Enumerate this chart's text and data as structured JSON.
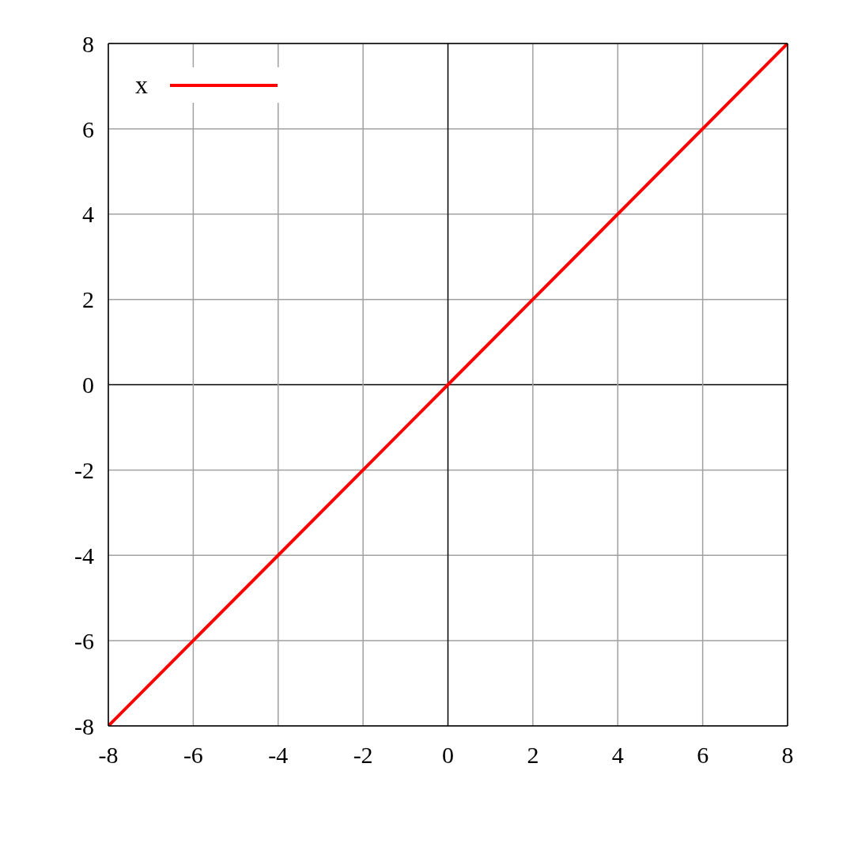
{
  "chart_data": {
    "type": "line",
    "x": [
      -8,
      -6,
      -4,
      -2,
      0,
      2,
      4,
      6,
      8
    ],
    "series": [
      {
        "name": "x",
        "color": "#ff0000",
        "values": [
          -8,
          -6,
          -4,
          -2,
          0,
          2,
          4,
          6,
          8
        ]
      }
    ],
    "xlim": [
      -8,
      8
    ],
    "ylim": [
      -8,
      8
    ],
    "xticks": [
      -8,
      -6,
      -4,
      -2,
      0,
      2,
      4,
      6,
      8
    ],
    "yticks": [
      -8,
      -6,
      -4,
      -2,
      0,
      2,
      4,
      6,
      8
    ],
    "grid": true,
    "legend": "top left",
    "marker": "none",
    "line_style": "solid"
  }
}
